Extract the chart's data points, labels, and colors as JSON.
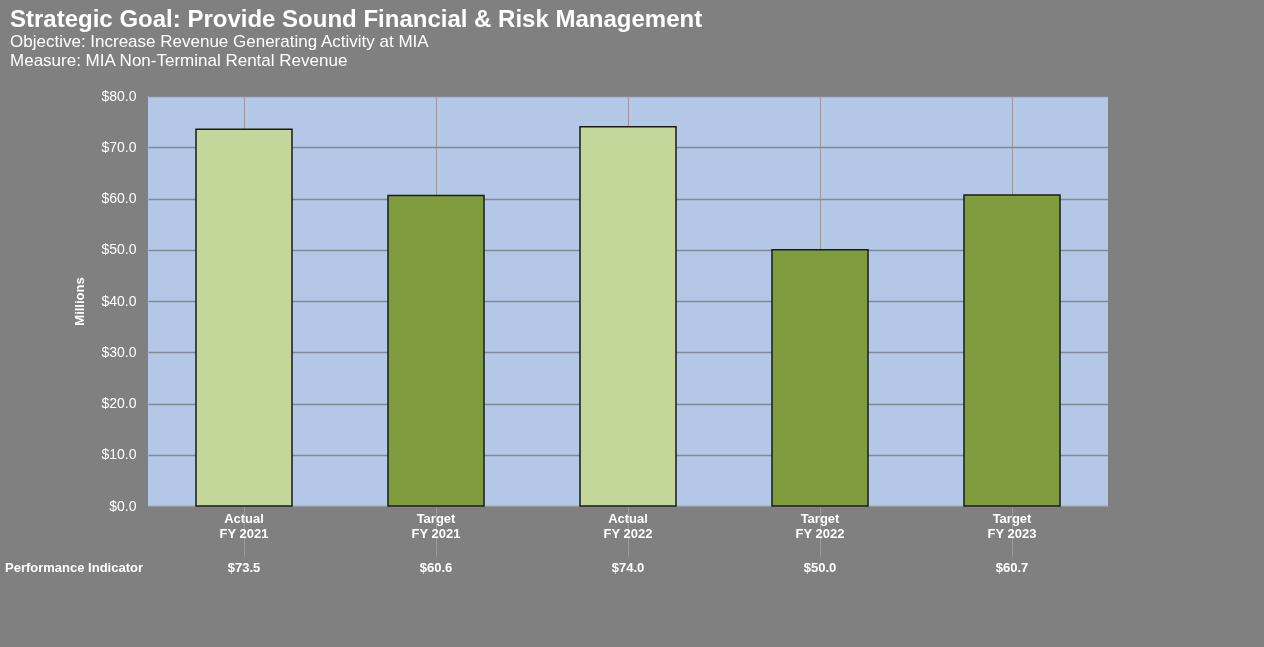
{
  "chart_data": {
    "type": "bar",
    "title": "Strategic Goal: Provide Sound Financial & Risk Management",
    "subtitle": "Objective: Increase Revenue Generating Activity at MIA\nMeasure:  MIA Non-Terminal Rental Revenue",
    "ylabel": "Millions",
    "categories": [
      "Actual\nFY 2021",
      "Target\nFY 2021",
      "Actual\nFY 2022",
      "Target\nFY 2022",
      "Target\nFY 2023"
    ],
    "values": [
      73.5,
      60.6,
      74.0,
      50.0,
      60.7
    ],
    "colors": [
      "#c4d79b",
      "#7f9c3f",
      "#c4d79b",
      "#7f9c3f",
      "#7f9c3f"
    ],
    "value_labels": [
      "$73.5",
      "$60.6",
      "$74.0",
      "$50.0",
      "$60.7"
    ],
    "annotations": [
      "Performance Indicator"
    ],
    "ylim": [
      0,
      80
    ],
    "yticks": [
      {
        "value": 0,
        "label": "$0.0"
      },
      {
        "value": 10,
        "label": "$10.0"
      },
      {
        "value": 20,
        "label": "$20.0"
      },
      {
        "value": 30,
        "label": "$30.0"
      },
      {
        "value": 40,
        "label": "$40.0"
      },
      {
        "value": 50,
        "label": "$50.0"
      },
      {
        "value": 60,
        "label": "$60.0"
      },
      {
        "value": 70,
        "label": "$70.0"
      },
      {
        "value": 80,
        "label": "$80.0"
      }
    ],
    "grid": true
  }
}
